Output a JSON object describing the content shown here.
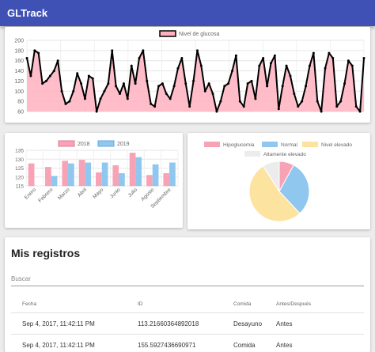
{
  "app": {
    "title": "GLTrack"
  },
  "colors": {
    "appbar": "#3f51b5",
    "line_fill": "#ffb1c1",
    "line_stroke": "#000000",
    "bar_2018": "#f8a2b6",
    "bar_2019": "#90c7ee",
    "hipo": "#f8a2b6",
    "normal": "#90c7ee",
    "elevado": "#fde3a0",
    "alto": "#ececec"
  },
  "chart_data": [
    {
      "type": "area",
      "series": [
        {
          "name": "Nivel de glucosa",
          "values": [
            165,
            130,
            180,
            175,
            115,
            120,
            130,
            140,
            160,
            100,
            75,
            80,
            100,
            135,
            115,
            85,
            130,
            125,
            60,
            85,
            100,
            115,
            180,
            110,
            95,
            115,
            85,
            150,
            115,
            165,
            180,
            120,
            75,
            70,
            110,
            115,
            95,
            85,
            110,
            145,
            165,
            115,
            70,
            120,
            180,
            150,
            100,
            115,
            95,
            60,
            80,
            110,
            115,
            140,
            170,
            80,
            70,
            115,
            120,
            85,
            150,
            165,
            110,
            155,
            170,
            65,
            110,
            150,
            130,
            95,
            70,
            80,
            110,
            150,
            175,
            80,
            60,
            145,
            175,
            165,
            70,
            80,
            115,
            160,
            150,
            70,
            55,
            165
          ]
        }
      ],
      "ylim": [
        60,
        200
      ],
      "yticks": [
        "60",
        "80",
        "100",
        "120",
        "140",
        "160",
        "180",
        "200"
      ],
      "grid": true,
      "legend": "top"
    },
    {
      "type": "bar",
      "categories": [
        "Enero",
        "Febrero",
        "Marzo",
        "Abril",
        "Mayo",
        "Junio",
        "Julio",
        "Agosto",
        "Septiembre"
      ],
      "series": [
        {
          "name": "2018",
          "values": [
            127.5,
            125.5,
            129,
            129.5,
            122.5,
            126.5,
            133.5,
            121,
            122
          ]
        },
        {
          "name": "2019",
          "values": [
            115,
            120.5,
            127.5,
            128,
            128,
            122,
            131,
            127,
            128
          ]
        }
      ],
      "ylim": [
        115,
        135
      ],
      "yticks": [
        "115",
        "120",
        "125",
        "130",
        "135"
      ],
      "grid": true,
      "legend": "top"
    },
    {
      "type": "pie",
      "labels": [
        "Hipoglucemia",
        "Normal",
        "Nivel elevado",
        "Altamente elevado"
      ],
      "values": [
        8,
        30,
        53,
        9
      ],
      "legend": "top"
    }
  ],
  "table": {
    "title": "Mis registros",
    "search_placeholder": "Buscar",
    "columns": [
      "Fecha",
      "ID",
      "Comida",
      "Antes/Después"
    ],
    "rows": [
      [
        "Sep 4, 2017, 11:42:11 PM",
        "113.21660364892018",
        "Desayuno",
        "Antes"
      ],
      [
        "Sep 4, 2017, 11:42:11 PM",
        "155.5927436690971",
        "Comida",
        "Antes"
      ]
    ]
  }
}
